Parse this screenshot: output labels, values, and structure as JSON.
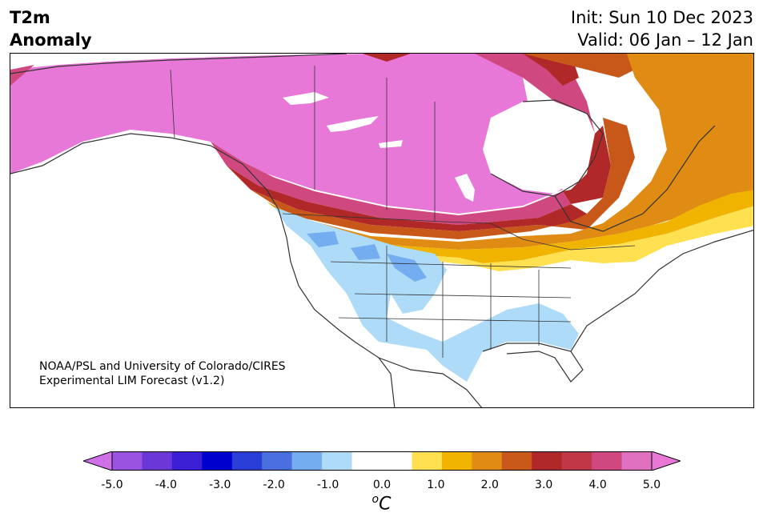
{
  "header": {
    "title_line1": "T2m",
    "title_line2": "Anomaly",
    "init": "Init: Sun 10 Dec 2023",
    "valid": "Valid: 06 Jan – 12 Jan"
  },
  "credit": {
    "line1": "NOAA/PSL and University of Colorado/CIRES",
    "line2": "Experimental LIM Forecast (v1.2)"
  },
  "legend": {
    "unit_base": "C",
    "unit_sup": "o",
    "ticks": [
      "-5.0",
      "-4.0",
      "-3.0",
      "-2.0",
      "-1.0",
      "0.0",
      "1.0",
      "2.0",
      "3.0",
      "4.0",
      "5.0"
    ],
    "colors": [
      "#9a52e0",
      "#6b38d8",
      "#3a1fd4",
      "#0000cc",
      "#2a3fd8",
      "#4a70e0",
      "#74aef0",
      "#aedcf8",
      "#ffffff",
      "#ffffff",
      "#ffe050",
      "#f0b400",
      "#e08c14",
      "#c8581a",
      "#b02828",
      "#c03848",
      "#d04880",
      "#e070c0"
    ],
    "extend_low_color": "#d070e8",
    "extend_high_color": "#e878d8"
  },
  "map": {
    "region": "North America",
    "colors": {
      "strong_warm": "#e878d8",
      "warm_4": "#d04880",
      "warm_3": "#b02828",
      "warm_2": "#c8581a",
      "warm_15": "#e08c14",
      "warm_1": "#f0b400",
      "warm_05": "#ffe050",
      "cool_05": "#aedcf8",
      "cool_1": "#74aef0",
      "cool_15": "#6aa0ea"
    }
  }
}
